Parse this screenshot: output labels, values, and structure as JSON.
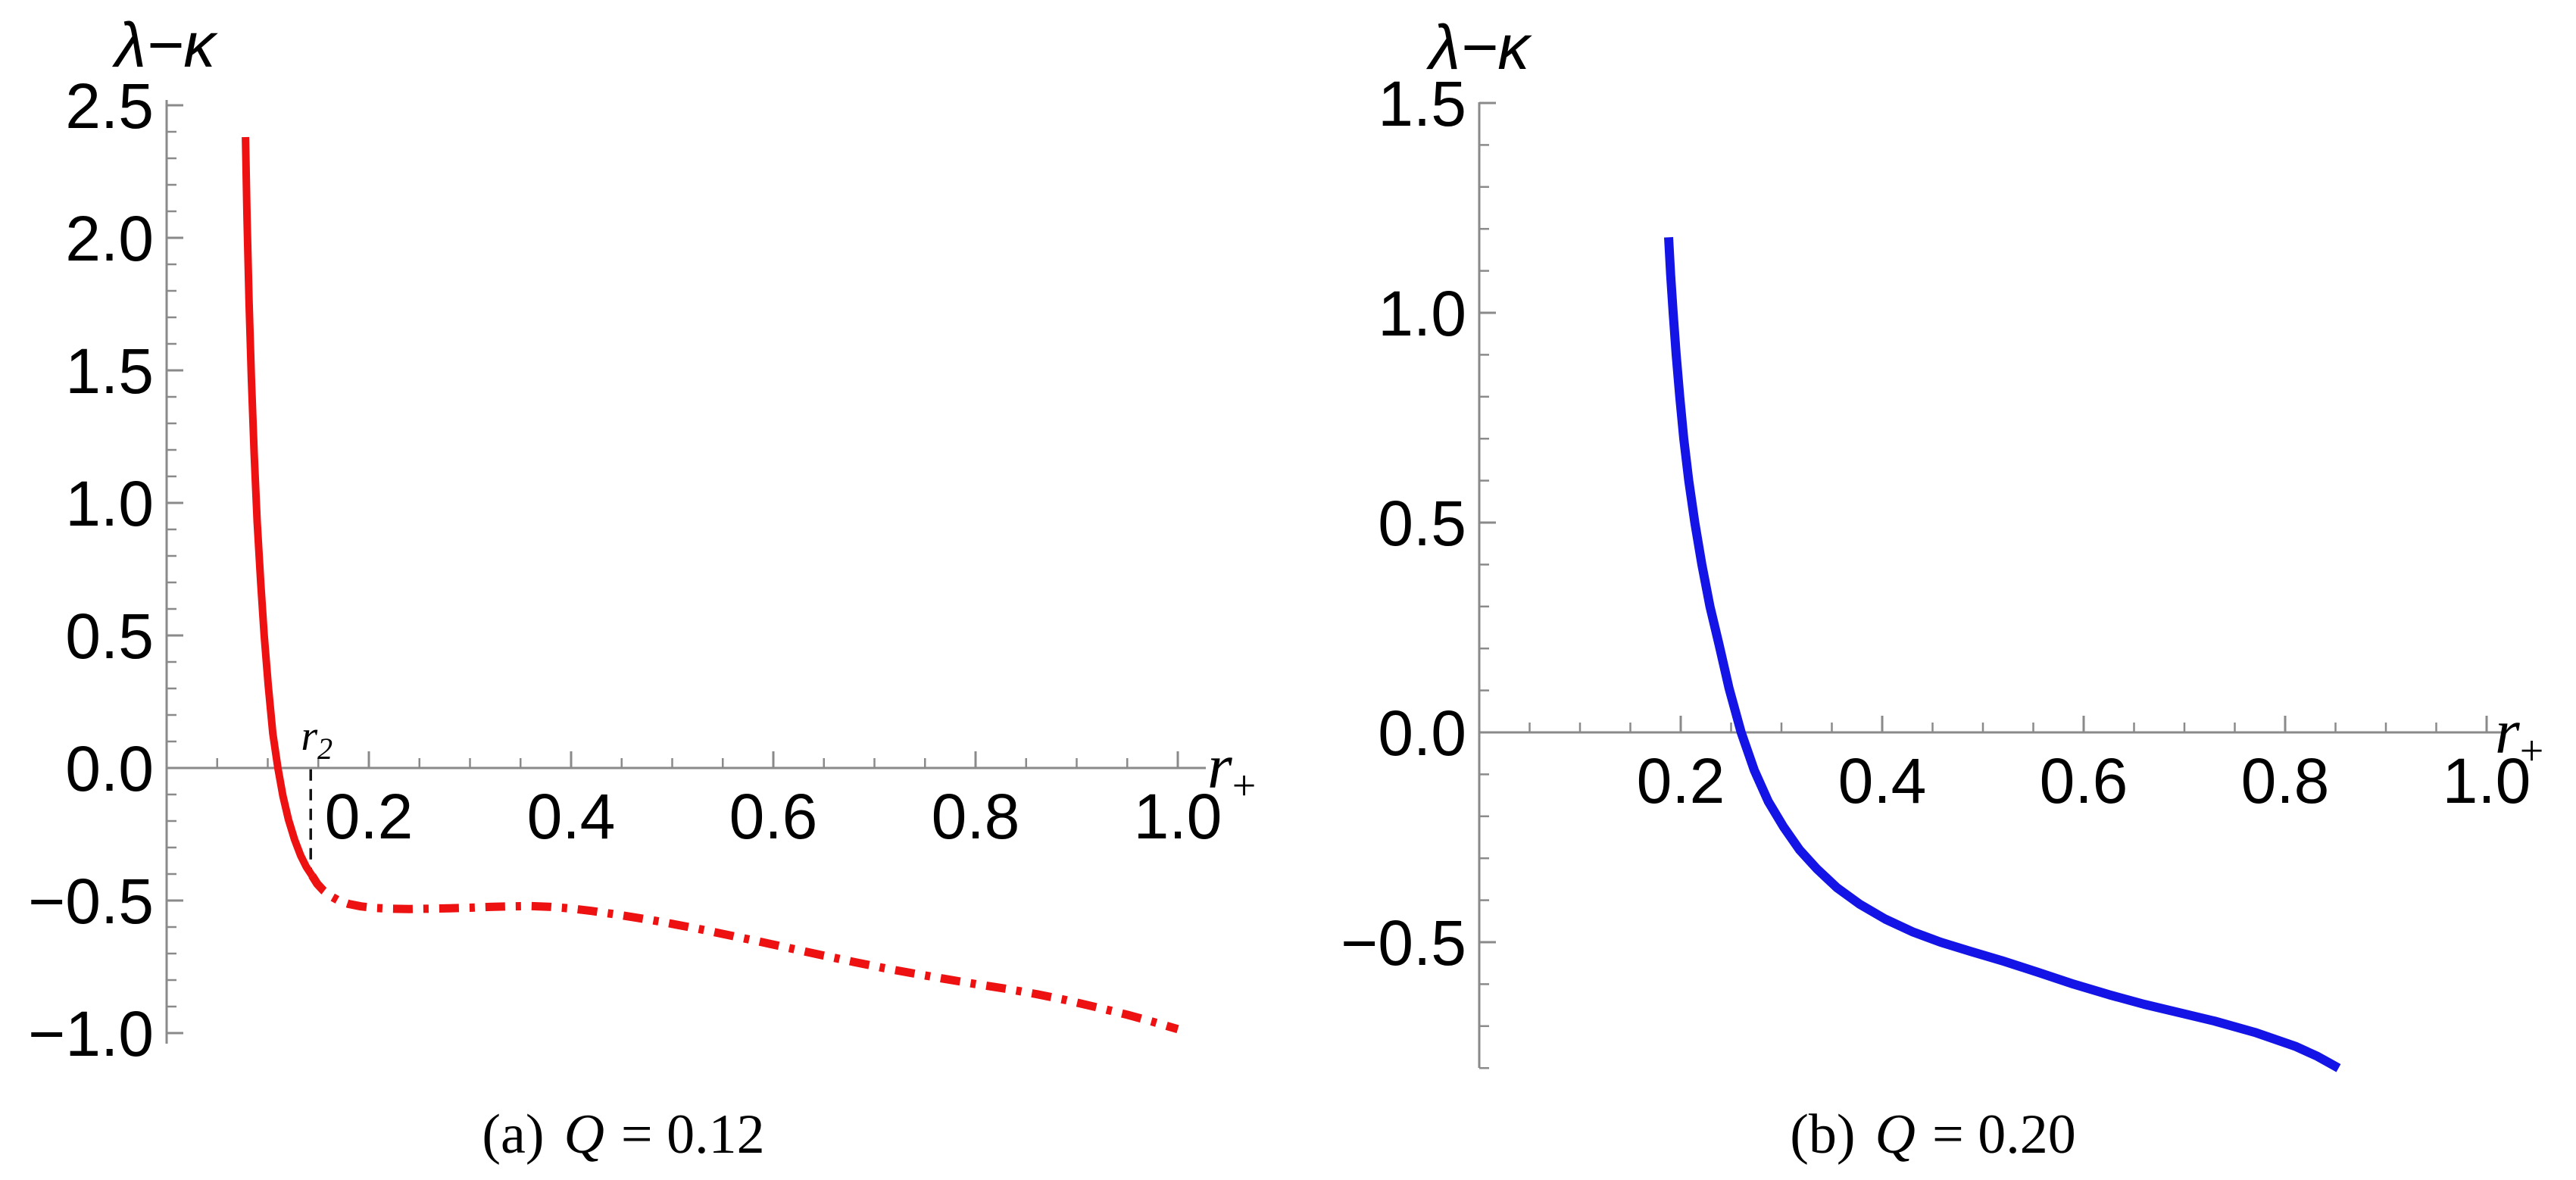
{
  "figure": {
    "background": "#ffffff",
    "axis_color": "#8a8a8a",
    "annotation_color": "#141414",
    "red": "#ee1111",
    "blue": "#1414e6"
  },
  "chart_data": [
    {
      "type": "line",
      "panel": "a",
      "title": "(a) Q = 0.12",
      "caption": {
        "index": "(a)",
        "variable": "Q",
        "rest": "= 0.12"
      },
      "ylabel": "λ−κ",
      "xlabel": {
        "base": "r",
        "subscript": "+"
      },
      "xlim": [
        0,
        1.028
      ],
      "ylim": [
        -1.04,
        2.52
      ],
      "grid": false,
      "legend": null,
      "x_ticks": [
        {
          "v": 0.2,
          "label": "0.2"
        },
        {
          "v": 0.4,
          "label": "0.4"
        },
        {
          "v": 0.6,
          "label": "0.6"
        },
        {
          "v": 0.8,
          "label": "0.8"
        },
        {
          "v": 1.0,
          "label": "1.0"
        }
      ],
      "y_ticks": [
        {
          "v": 2.5,
          "label": "2.5"
        },
        {
          "v": 2.0,
          "label": "2.0"
        },
        {
          "v": 1.5,
          "label": "1.5"
        },
        {
          "v": 1.0,
          "label": "1.0"
        },
        {
          "v": 0.5,
          "label": "0.5"
        },
        {
          "v": 0.0,
          "label": "0.0"
        },
        {
          "v": -0.5,
          "label": "−0.5"
        },
        {
          "v": -1.0,
          "label": "−1.0"
        }
      ],
      "x_minor_step": 0.05,
      "y_minor_step": 0.1,
      "annotations": [
        {
          "type": "dashed-vline",
          "x": 0.1425,
          "from": -0.005,
          "to": -0.39,
          "label_base": "r",
          "label_sub": "2"
        }
      ],
      "series": [
        {
          "name": "lambda-minus-kappa-solid-branch",
          "style": "solid",
          "color": "#ee1111",
          "width": 10,
          "points": [
            [
              0.078,
              2.38
            ],
            [
              0.0795,
              2.08
            ],
            [
              0.0815,
              1.76
            ],
            [
              0.0838,
              1.47
            ],
            [
              0.0865,
              1.19
            ],
            [
              0.0895,
              0.93
            ],
            [
              0.093,
              0.7
            ],
            [
              0.0965,
              0.5
            ],
            [
              0.1005,
              0.31
            ],
            [
              0.105,
              0.13
            ],
            [
              0.11,
              0.0
            ],
            [
              0.115,
              -0.105
            ],
            [
              0.1205,
              -0.195
            ],
            [
              0.1265,
              -0.27
            ],
            [
              0.1325,
              -0.33
            ],
            [
              0.138,
              -0.372
            ],
            [
              0.1438,
              -0.406
            ]
          ]
        },
        {
          "name": "lambda-minus-kappa-dashdot-branch",
          "style": "dashdot",
          "color": "#ee1111",
          "width": 11,
          "points": [
            [
              0.1438,
              -0.406
            ],
            [
              0.149,
              -0.437
            ],
            [
              0.155,
              -0.462
            ],
            [
              0.162,
              -0.483
            ],
            [
              0.17,
              -0.5
            ],
            [
              0.18,
              -0.513
            ],
            [
              0.192,
              -0.522
            ],
            [
              0.206,
              -0.528
            ],
            [
              0.222,
              -0.531
            ],
            [
              0.24,
              -0.532
            ],
            [
              0.26,
              -0.531
            ],
            [
              0.28,
              -0.529
            ],
            [
              0.3,
              -0.527
            ],
            [
              0.32,
              -0.524
            ],
            [
              0.34,
              -0.522
            ],
            [
              0.36,
              -0.521
            ],
            [
              0.38,
              -0.524
            ],
            [
              0.4,
              -0.53
            ],
            [
              0.42,
              -0.539
            ],
            [
              0.44,
              -0.55
            ],
            [
              0.46,
              -0.562
            ],
            [
              0.48,
              -0.574
            ],
            [
              0.5,
              -0.588
            ],
            [
              0.53,
              -0.61
            ],
            [
              0.56,
              -0.634
            ],
            [
              0.59,
              -0.658
            ],
            [
              0.62,
              -0.683
            ],
            [
              0.65,
              -0.708
            ],
            [
              0.68,
              -0.732
            ],
            [
              0.71,
              -0.755
            ],
            [
              0.74,
              -0.776
            ],
            [
              0.77,
              -0.796
            ],
            [
              0.8,
              -0.815
            ],
            [
              0.83,
              -0.833
            ],
            [
              0.86,
              -0.853
            ],
            [
              0.89,
              -0.876
            ],
            [
              0.92,
              -0.903
            ],
            [
              0.95,
              -0.931
            ],
            [
              0.975,
              -0.957
            ],
            [
              1.0,
              -0.985
            ]
          ]
        }
      ]
    },
    {
      "type": "line",
      "panel": "b",
      "title": "(b) Q = 0.20",
      "caption": {
        "index": "(b)",
        "variable": "Q",
        "rest": "= 0.20"
      },
      "ylabel": "λ−κ",
      "xlabel": {
        "base": "r",
        "subscript": "+"
      },
      "xlim": [
        0,
        1.019
      ],
      "ylim": [
        -0.8,
        1.502
      ],
      "grid": false,
      "legend": null,
      "x_ticks": [
        {
          "v": 0.2,
          "label": "0.2"
        },
        {
          "v": 0.4,
          "label": "0.4"
        },
        {
          "v": 0.6,
          "label": "0.6"
        },
        {
          "v": 0.8,
          "label": "0.8"
        },
        {
          "v": 1.0,
          "label": "1.0"
        }
      ],
      "y_ticks": [
        {
          "v": 1.5,
          "label": "1.5"
        },
        {
          "v": 1.0,
          "label": "1.0"
        },
        {
          "v": 0.5,
          "label": "0.5"
        },
        {
          "v": 0.0,
          "label": "0.0"
        },
        {
          "v": -0.5,
          "label": "−0.5"
        }
      ],
      "x_minor_step": 0.05,
      "y_minor_step": 0.1,
      "annotations": [],
      "series": [
        {
          "name": "lambda-minus-kappa",
          "style": "solid",
          "color": "#1414e6",
          "width": 12,
          "points": [
            [
              0.188,
              1.18
            ],
            [
              0.19,
              1.09
            ],
            [
              0.1925,
              1.0
            ],
            [
              0.1955,
              0.9
            ],
            [
              0.199,
              0.8
            ],
            [
              0.203,
              0.7
            ],
            [
              0.208,
              0.6
            ],
            [
              0.214,
              0.5
            ],
            [
              0.221,
              0.4
            ],
            [
              0.229,
              0.3
            ],
            [
              0.238,
              0.21
            ],
            [
              0.248,
              0.105
            ],
            [
              0.26,
              0.0
            ],
            [
              0.273,
              -0.09
            ],
            [
              0.287,
              -0.165
            ],
            [
              0.302,
              -0.225
            ],
            [
              0.318,
              -0.28
            ],
            [
              0.335,
              -0.325
            ],
            [
              0.355,
              -0.37
            ],
            [
              0.378,
              -0.41
            ],
            [
              0.403,
              -0.445
            ],
            [
              0.43,
              -0.475
            ],
            [
              0.458,
              -0.5
            ],
            [
              0.488,
              -0.522
            ],
            [
              0.52,
              -0.545
            ],
            [
              0.555,
              -0.572
            ],
            [
              0.59,
              -0.6
            ],
            [
              0.625,
              -0.625
            ],
            [
              0.66,
              -0.648
            ],
            [
              0.695,
              -0.668
            ],
            [
              0.73,
              -0.688
            ],
            [
              0.77,
              -0.715
            ],
            [
              0.81,
              -0.748
            ],
            [
              0.832,
              -0.772
            ],
            [
              0.853,
              -0.8
            ]
          ]
        }
      ]
    }
  ]
}
